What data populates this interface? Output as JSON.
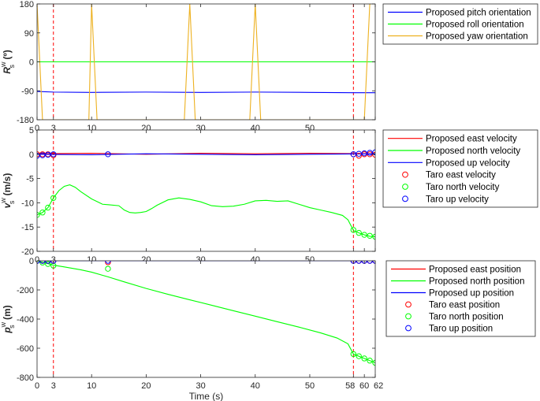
{
  "chart_data": [
    {
      "type": "line",
      "ylabel": "R",
      "ylabel_sup": "w",
      "ylabel_sub": "s",
      "ylabel_unit": "(º)",
      "xlim": [
        0,
        62
      ],
      "ylim": [
        -180,
        180
      ],
      "xticks": [
        0,
        3,
        10,
        20,
        30,
        40,
        50,
        58,
        60,
        62
      ],
      "xtick_labels": [
        "0",
        "3",
        "10",
        "20",
        "30",
        "40",
        "50",
        "",
        "",
        ""
      ],
      "yticks": [
        180,
        90,
        0,
        -90,
        -180
      ],
      "grid": false,
      "vlines": [
        3,
        58
      ],
      "legend_position": "outside-right",
      "series": [
        {
          "name": "Proposed pitch orientation",
          "color": "#0000ff",
          "kind": "line",
          "x": [
            0,
            3,
            10,
            20,
            30,
            40,
            50,
            58,
            62
          ],
          "y": [
            -92,
            -94,
            -95,
            -94,
            -95,
            -94,
            -95,
            -96,
            -96
          ]
        },
        {
          "name": "Proposed roll orientation",
          "color": "#00ff00",
          "kind": "line",
          "x": [
            0,
            62
          ],
          "y": [
            0,
            0
          ]
        },
        {
          "name": "Proposed yaw orientation",
          "color": "#edb120",
          "kind": "line",
          "x": [
            0,
            1,
            3,
            9.5,
            10,
            11,
            27,
            28,
            29,
            39,
            40,
            41,
            58,
            60,
            61,
            62
          ],
          "y": [
            180,
            -180,
            -180,
            -180,
            180,
            -180,
            -180,
            180,
            -180,
            -180,
            180,
            -180,
            -180,
            -180,
            180,
            180
          ]
        }
      ]
    },
    {
      "type": "line",
      "ylabel": "v",
      "ylabel_sup": "w",
      "ylabel_sub": "s",
      "ylabel_unit": "(m/s)",
      "xlim": [
        0,
        62
      ],
      "ylim": [
        -20,
        5
      ],
      "xticks": [
        0,
        3,
        10,
        20,
        30,
        40,
        50,
        58,
        60,
        62
      ],
      "xtick_labels": [
        "0",
        "3",
        "10",
        "20",
        "30",
        "40",
        "50",
        "",
        "",
        ""
      ],
      "yticks": [
        5,
        0,
        -5,
        -10,
        -15,
        -20
      ],
      "grid": false,
      "vlines": [
        3,
        58
      ],
      "legend_position": "outside-right",
      "series": [
        {
          "name": "Proposed east velocity",
          "color": "#ff0000",
          "kind": "line",
          "x": [
            0,
            10,
            20,
            30,
            40,
            50,
            62
          ],
          "y": [
            0.1,
            0.2,
            0,
            0.2,
            0.1,
            0.2,
            0.1
          ]
        },
        {
          "name": "Proposed north velocity",
          "color": "#00ff00",
          "kind": "line",
          "x": [
            0,
            1,
            2,
            3,
            4,
            5,
            6,
            7,
            8,
            10,
            12,
            13,
            15,
            16,
            17,
            18,
            19,
            20,
            21,
            22,
            24,
            26,
            28,
            30,
            32,
            34,
            36,
            38,
            40,
            42,
            44,
            46,
            48,
            50,
            52,
            54,
            56,
            57,
            58,
            59,
            60,
            61,
            62
          ],
          "y": [
            -12.5,
            -12,
            -11,
            -9,
            -7.5,
            -6.6,
            -6.3,
            -6.8,
            -7.7,
            -9.2,
            -10.3,
            -10.4,
            -10.6,
            -11.5,
            -12,
            -12.1,
            -12,
            -11.8,
            -11.2,
            -10.5,
            -9.4,
            -9,
            -9.3,
            -9.8,
            -10.6,
            -10.8,
            -10.7,
            -10.3,
            -9.6,
            -9.5,
            -9.7,
            -9.6,
            -10.3,
            -11,
            -11.5,
            -12,
            -12.6,
            -13.5,
            -15.7,
            -16.2,
            -16.6,
            -16.9,
            -17
          ]
        },
        {
          "name": "Proposed up velocity",
          "color": "#0000ff",
          "kind": "line",
          "x": [
            0,
            10,
            20,
            30,
            40,
            50,
            62
          ],
          "y": [
            0,
            -0.1,
            0.1,
            0,
            -0.1,
            0,
            0.1
          ]
        },
        {
          "name": "Taro east velocity",
          "color": "#ff0000",
          "kind": "markers",
          "x": [
            0,
            1,
            2,
            3,
            58,
            59,
            60,
            61,
            62
          ],
          "y": [
            0,
            0,
            0,
            -0.2,
            0,
            -0.3,
            0,
            0,
            -0.1
          ]
        },
        {
          "name": "Taro north velocity",
          "color": "#00ff00",
          "kind": "markers",
          "x": [
            0,
            1,
            2,
            3,
            58,
            59,
            60,
            61,
            62
          ],
          "y": [
            -12.5,
            -12,
            -11,
            -9,
            -15.6,
            -16.2,
            -16.6,
            -16.8,
            -17
          ]
        },
        {
          "name": "Taro up velocity",
          "color": "#0000ff",
          "kind": "markers",
          "x": [
            0,
            1,
            2,
            3,
            13,
            58,
            59,
            60,
            61,
            62
          ],
          "y": [
            -0.3,
            -0.2,
            -0.1,
            0,
            0,
            0,
            0.1,
            0.2,
            0.3,
            0.4
          ]
        }
      ]
    },
    {
      "type": "line",
      "ylabel": "p",
      "ylabel_sup": "w",
      "ylabel_sub": "s",
      "ylabel_unit": "(m)",
      "xlabel": "Time (s)",
      "xlim": [
        0,
        62
      ],
      "ylim": [
        -800,
        0
      ],
      "xticks": [
        0,
        3,
        10,
        20,
        30,
        40,
        50,
        58,
        60,
        62
      ],
      "xtick_labels": [
        "0",
        "3",
        "10",
        "20",
        "30",
        "40",
        "50",
        "58",
        "60",
        "62"
      ],
      "yticks": [
        0,
        -200,
        -400,
        -600,
        -800
      ],
      "grid": false,
      "vlines": [
        3,
        58
      ],
      "legend_position": "outside-right",
      "series": [
        {
          "name": "Proposed east position",
          "color": "#ff0000",
          "kind": "line",
          "x": [
            0,
            62
          ],
          "y": [
            0,
            0
          ]
        },
        {
          "name": "Proposed north position",
          "color": "#00ff00",
          "kind": "line",
          "x": [
            0,
            1,
            2,
            3,
            5,
            8,
            10,
            13,
            16,
            20,
            24,
            28,
            32,
            36,
            40,
            44,
            48,
            52,
            55,
            57,
            58,
            59,
            60,
            61,
            62
          ],
          "y": [
            0,
            -10,
            -20,
            -30,
            -42,
            -62,
            -78,
            -110,
            -145,
            -190,
            -230,
            -268,
            -305,
            -343,
            -380,
            -418,
            -455,
            -495,
            -530,
            -570,
            -640,
            -655,
            -670,
            -685,
            -700
          ]
        },
        {
          "name": "Proposed up position",
          "color": "#0000ff",
          "kind": "line",
          "x": [
            0,
            62
          ],
          "y": [
            0,
            0
          ]
        },
        {
          "name": "Taro east position",
          "color": "#ff0000",
          "kind": "markers",
          "x": [
            0,
            1,
            2,
            3,
            13,
            58,
            59,
            60,
            61,
            62
          ],
          "y": [
            0,
            0,
            0,
            0,
            -10,
            0,
            0,
            0,
            0,
            0
          ]
        },
        {
          "name": "Taro north position",
          "color": "#00ff00",
          "kind": "markers",
          "x": [
            0,
            1,
            2,
            3,
            13,
            58,
            59,
            60,
            61,
            62
          ],
          "y": [
            0,
            -12,
            -22,
            -33,
            -55,
            -640,
            -655,
            -670,
            -685,
            -700
          ]
        },
        {
          "name": "Taro up position",
          "color": "#0000ff",
          "kind": "markers",
          "x": [
            0,
            1,
            2,
            3,
            13,
            58,
            59,
            60,
            61,
            62
          ],
          "y": [
            0,
            0,
            0,
            0,
            0,
            0,
            0,
            0,
            0,
            0
          ]
        }
      ]
    }
  ]
}
